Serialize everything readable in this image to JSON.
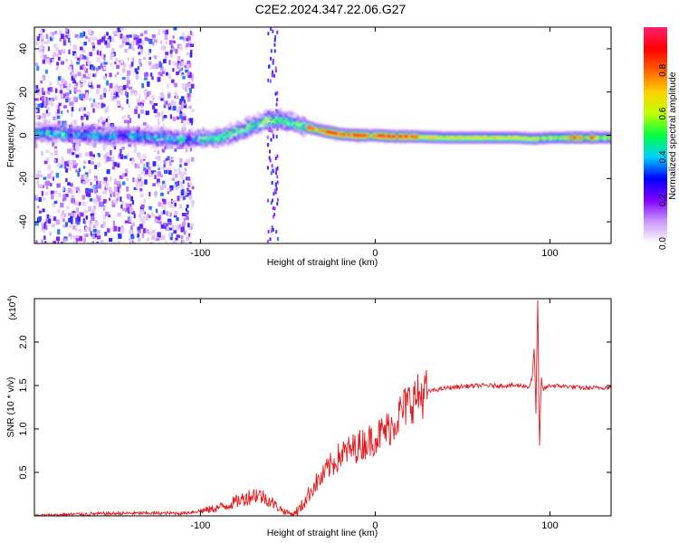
{
  "title": "C2E2.2024.347.22.06.G27",
  "chart_data": [
    {
      "type": "heatmap",
      "name": "spectrogram",
      "xlabel": "Height of straight line (km)",
      "ylabel": "Frequency (Hz)",
      "xlim": [
        -195,
        135
      ],
      "ylim": [
        -50,
        50
      ],
      "xticks": [
        -100,
        0,
        100
      ],
      "xtick_labels": [
        "-100",
        "0",
        "100"
      ],
      "yticks": [
        -40,
        -20,
        0,
        20,
        40
      ],
      "ytick_labels": [
        "-40",
        "-20",
        "0",
        "20",
        "40"
      ],
      "ridge": {
        "x": [
          -195,
          -170,
          -140,
          -110,
          -90,
          -75,
          -62,
          -55,
          -48,
          -40,
          -30,
          -20,
          -10,
          0,
          10,
          20,
          40,
          60,
          80,
          90,
          100,
          120,
          135
        ],
        "y": [
          1.5,
          0.5,
          0.0,
          -1.5,
          -1.0,
          3.0,
          7.0,
          7.5,
          6.0,
          4.0,
          2.0,
          0.5,
          0.0,
          0.0,
          -0.5,
          -0.5,
          -1.0,
          -1.0,
          -1.0,
          -1.5,
          -1.0,
          -1.0,
          -1.0
        ]
      },
      "colorbar": {
        "label": "Normalized spectral amplitude",
        "range": [
          0,
          1
        ],
        "ticks": [
          0.0,
          0.2,
          0.4,
          0.6,
          0.8
        ],
        "tick_labels": [
          "0.0",
          "0.2",
          "0.4",
          "0.6",
          "0.8"
        ],
        "colors": [
          "#ffffff",
          "#cc99ff",
          "#8000ff",
          "#0000ff",
          "#00d0ff",
          "#00ff40",
          "#c0ff00",
          "#ffd000",
          "#ff6000",
          "#ff0000",
          "#ff2070"
        ]
      }
    },
    {
      "type": "line",
      "name": "snr",
      "xlabel": "Height of straight line (km)",
      "ylabel": "SNR (10 * v/v)",
      "y_multiplier": "(x10",
      "y_multiplier_exp": "4",
      "y_multiplier_close": ")",
      "xlim": [
        -195,
        135
      ],
      "ylim": [
        0,
        2.5
      ],
      "xticks": [
        -100,
        0,
        100
      ],
      "xtick_labels": [
        "-100",
        "0",
        "100"
      ],
      "yticks": [
        0.5,
        1.0,
        1.5,
        2.0
      ],
      "ytick_labels": [
        "0.5",
        "1.0",
        "1.5",
        "2.0"
      ],
      "color": "#e8191e",
      "series": [
        {
          "name": "SNR",
          "x": [
            -195,
            -170,
            -140,
            -110,
            -95,
            -85,
            -75,
            -68,
            -62,
            -57,
            -52,
            -47,
            -43,
            -40,
            -35,
            -30,
            -27,
            -24,
            -20,
            -15,
            -10,
            -5,
            0,
            5,
            10,
            15,
            20,
            30,
            40,
            50,
            60,
            70,
            80,
            85,
            88,
            90,
            91,
            92,
            93,
            94,
            95,
            96,
            98,
            100,
            110,
            120,
            135
          ],
          "y": [
            0.0,
            0.02,
            0.03,
            0.03,
            0.07,
            0.12,
            0.2,
            0.25,
            0.2,
            0.12,
            0.05,
            0.02,
            0.08,
            0.18,
            0.35,
            0.45,
            0.55,
            0.6,
            0.7,
            0.75,
            0.8,
            0.85,
            0.9,
            0.97,
            1.05,
            1.2,
            1.32,
            1.43,
            1.47,
            1.49,
            1.5,
            1.5,
            1.5,
            1.5,
            1.48,
            1.6,
            1.95,
            1.2,
            2.55,
            0.7,
            1.6,
            1.45,
            1.48,
            1.5,
            1.49,
            1.47,
            1.48
          ]
        }
      ]
    }
  ]
}
